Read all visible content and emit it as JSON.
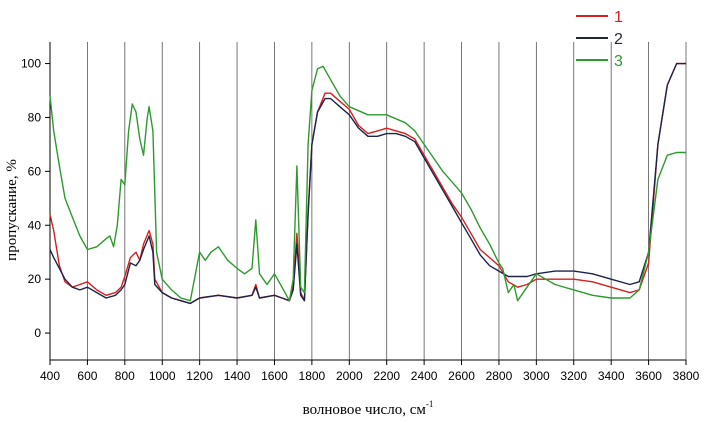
{
  "chart_data": {
    "type": "line",
    "title": "",
    "xlabel": "волновое число, см",
    "xlabel_sup": "-1",
    "ylabel": "пропускание, %",
    "xlim": [
      400,
      3800
    ],
    "ylim": [
      -10,
      108
    ],
    "x_ticks": [
      400,
      600,
      800,
      1000,
      1200,
      1400,
      1600,
      1800,
      2000,
      2200,
      2400,
      2600,
      2800,
      3000,
      3200,
      3400,
      3600,
      3800
    ],
    "y_ticks": [
      0,
      20,
      40,
      60,
      80,
      100
    ],
    "grid": "vertical lines at each x tick",
    "legend_position": "top-right",
    "series": [
      {
        "name": "1",
        "color": "#d42020",
        "points": [
          [
            400,
            44
          ],
          [
            420,
            38
          ],
          [
            450,
            25
          ],
          [
            480,
            19
          ],
          [
            520,
            17
          ],
          [
            560,
            18
          ],
          [
            600,
            19
          ],
          [
            650,
            16
          ],
          [
            700,
            14
          ],
          [
            750,
            15
          ],
          [
            780,
            17
          ],
          [
            800,
            21
          ],
          [
            830,
            28
          ],
          [
            860,
            30
          ],
          [
            880,
            27
          ],
          [
            900,
            33
          ],
          [
            930,
            38
          ],
          [
            950,
            33
          ],
          [
            960,
            20
          ],
          [
            1000,
            15
          ],
          [
            1050,
            13
          ],
          [
            1100,
            12
          ],
          [
            1150,
            11
          ],
          [
            1200,
            13
          ],
          [
            1300,
            14
          ],
          [
            1400,
            13
          ],
          [
            1480,
            14
          ],
          [
            1500,
            18
          ],
          [
            1520,
            13
          ],
          [
            1600,
            14
          ],
          [
            1640,
            13
          ],
          [
            1680,
            12
          ],
          [
            1700,
            17
          ],
          [
            1720,
            37
          ],
          [
            1740,
            15
          ],
          [
            1760,
            12
          ],
          [
            1780,
            45
          ],
          [
            1800,
            70
          ],
          [
            1830,
            82
          ],
          [
            1870,
            89
          ],
          [
            1900,
            89
          ],
          [
            1950,
            86
          ],
          [
            2000,
            83
          ],
          [
            2050,
            77
          ],
          [
            2100,
            74
          ],
          [
            2150,
            75
          ],
          [
            2200,
            76
          ],
          [
            2250,
            75
          ],
          [
            2300,
            74
          ],
          [
            2350,
            72
          ],
          [
            2400,
            66
          ],
          [
            2450,
            60
          ],
          [
            2500,
            54
          ],
          [
            2550,
            48
          ],
          [
            2600,
            43
          ],
          [
            2650,
            37
          ],
          [
            2700,
            31
          ],
          [
            2750,
            28
          ],
          [
            2800,
            25
          ],
          [
            2850,
            19
          ],
          [
            2900,
            17
          ],
          [
            2950,
            18
          ],
          [
            3000,
            20
          ],
          [
            3100,
            20
          ],
          [
            3200,
            20
          ],
          [
            3300,
            19
          ],
          [
            3400,
            17
          ],
          [
            3500,
            15
          ],
          [
            3550,
            16
          ],
          [
            3600,
            26
          ],
          [
            3650,
            70
          ],
          [
            3700,
            92
          ],
          [
            3750,
            100
          ],
          [
            3800,
            100
          ]
        ]
      },
      {
        "name": "2",
        "color": "#1e2448",
        "points": [
          [
            400,
            31
          ],
          [
            420,
            28
          ],
          [
            450,
            24
          ],
          [
            480,
            20
          ],
          [
            520,
            17
          ],
          [
            560,
            16
          ],
          [
            600,
            17
          ],
          [
            650,
            15
          ],
          [
            700,
            13
          ],
          [
            750,
            14
          ],
          [
            780,
            16
          ],
          [
            800,
            18
          ],
          [
            830,
            26
          ],
          [
            860,
            25
          ],
          [
            880,
            27
          ],
          [
            900,
            31
          ],
          [
            930,
            36
          ],
          [
            950,
            30
          ],
          [
            960,
            18
          ],
          [
            1000,
            15
          ],
          [
            1050,
            13
          ],
          [
            1100,
            12
          ],
          [
            1150,
            11
          ],
          [
            1200,
            13
          ],
          [
            1300,
            14
          ],
          [
            1400,
            13
          ],
          [
            1480,
            14
          ],
          [
            1500,
            17
          ],
          [
            1520,
            13
          ],
          [
            1600,
            14
          ],
          [
            1640,
            13
          ],
          [
            1680,
            12
          ],
          [
            1700,
            16
          ],
          [
            1720,
            33
          ],
          [
            1740,
            14
          ],
          [
            1760,
            12
          ],
          [
            1780,
            44
          ],
          [
            1800,
            70
          ],
          [
            1830,
            82
          ],
          [
            1870,
            87
          ],
          [
            1900,
            87
          ],
          [
            1950,
            84
          ],
          [
            2000,
            81
          ],
          [
            2050,
            76
          ],
          [
            2100,
            73
          ],
          [
            2150,
            73
          ],
          [
            2200,
            74
          ],
          [
            2250,
            74
          ],
          [
            2300,
            73
          ],
          [
            2350,
            71
          ],
          [
            2400,
            65
          ],
          [
            2450,
            59
          ],
          [
            2500,
            53
          ],
          [
            2550,
            47
          ],
          [
            2600,
            41
          ],
          [
            2650,
            35
          ],
          [
            2700,
            29
          ],
          [
            2750,
            25
          ],
          [
            2800,
            23
          ],
          [
            2850,
            21
          ],
          [
            2900,
            21
          ],
          [
            2950,
            21
          ],
          [
            3000,
            22
          ],
          [
            3100,
            23
          ],
          [
            3200,
            23
          ],
          [
            3300,
            22
          ],
          [
            3400,
            20
          ],
          [
            3500,
            18
          ],
          [
            3550,
            19
          ],
          [
            3600,
            30
          ],
          [
            3650,
            70
          ],
          [
            3700,
            92
          ],
          [
            3750,
            100
          ],
          [
            3800,
            100
          ]
        ]
      },
      {
        "name": "3",
        "color": "#2e9a2e",
        "points": [
          [
            400,
            88
          ],
          [
            420,
            75
          ],
          [
            450,
            62
          ],
          [
            480,
            50
          ],
          [
            520,
            43
          ],
          [
            560,
            36
          ],
          [
            600,
            31
          ],
          [
            650,
            32
          ],
          [
            700,
            35
          ],
          [
            720,
            36
          ],
          [
            740,
            32
          ],
          [
            760,
            40
          ],
          [
            780,
            57
          ],
          [
            800,
            55
          ],
          [
            820,
            75
          ],
          [
            840,
            85
          ],
          [
            860,
            82
          ],
          [
            880,
            72
          ],
          [
            900,
            66
          ],
          [
            920,
            80
          ],
          [
            930,
            84
          ],
          [
            950,
            75
          ],
          [
            970,
            30
          ],
          [
            1000,
            20
          ],
          [
            1050,
            16
          ],
          [
            1100,
            13
          ],
          [
            1150,
            12
          ],
          [
            1200,
            30
          ],
          [
            1230,
            27
          ],
          [
            1260,
            30
          ],
          [
            1300,
            32
          ],
          [
            1350,
            27
          ],
          [
            1400,
            24
          ],
          [
            1440,
            22
          ],
          [
            1480,
            24
          ],
          [
            1500,
            42
          ],
          [
            1520,
            22
          ],
          [
            1560,
            18
          ],
          [
            1600,
            22
          ],
          [
            1640,
            17
          ],
          [
            1680,
            12
          ],
          [
            1700,
            20
          ],
          [
            1720,
            62
          ],
          [
            1740,
            17
          ],
          [
            1760,
            15
          ],
          [
            1780,
            70
          ],
          [
            1800,
            90
          ],
          [
            1830,
            98
          ],
          [
            1860,
            99
          ],
          [
            1900,
            94
          ],
          [
            1950,
            88
          ],
          [
            2000,
            84
          ],
          [
            2100,
            81
          ],
          [
            2200,
            81
          ],
          [
            2300,
            78
          ],
          [
            2350,
            75
          ],
          [
            2400,
            70
          ],
          [
            2450,
            65
          ],
          [
            2500,
            60
          ],
          [
            2550,
            56
          ],
          [
            2600,
            52
          ],
          [
            2650,
            46
          ],
          [
            2700,
            39
          ],
          [
            2750,
            33
          ],
          [
            2800,
            26
          ],
          [
            2820,
            24
          ],
          [
            2850,
            15
          ],
          [
            2880,
            18
          ],
          [
            2900,
            12
          ],
          [
            2950,
            17
          ],
          [
            3000,
            22
          ],
          [
            3050,
            20
          ],
          [
            3100,
            18
          ],
          [
            3200,
            16
          ],
          [
            3300,
            14
          ],
          [
            3400,
            13
          ],
          [
            3500,
            13
          ],
          [
            3550,
            16
          ],
          [
            3600,
            30
          ],
          [
            3650,
            57
          ],
          [
            3700,
            66
          ],
          [
            3750,
            67
          ],
          [
            3800,
            67
          ]
        ]
      }
    ]
  }
}
